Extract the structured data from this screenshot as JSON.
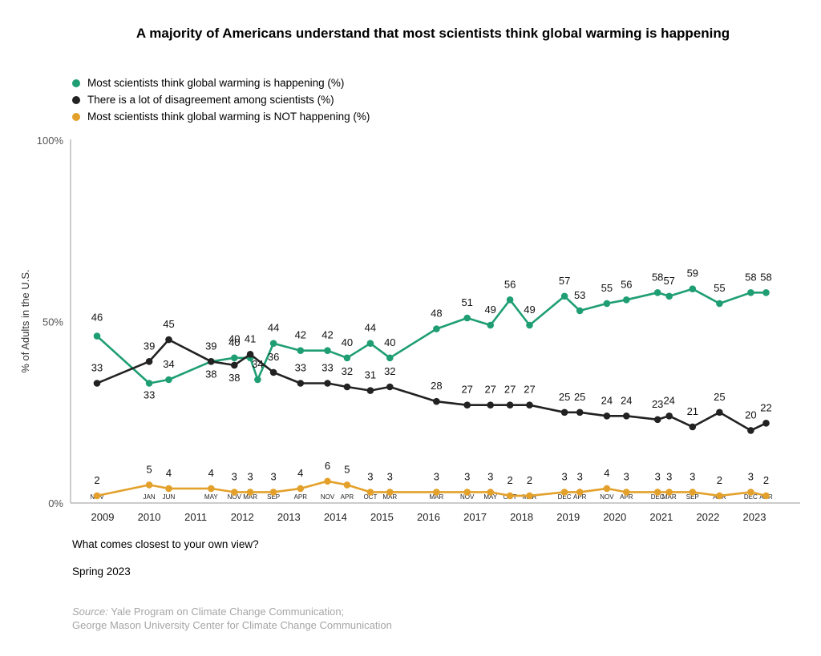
{
  "chart_data": {
    "type": "line",
    "title": "A majority of Americans understand that most scientists think global warming is happening",
    "ylabel": "% of Adults in the U.S.",
    "ylim": [
      0,
      100
    ],
    "yticks": [
      "0%",
      "50%",
      "100%"
    ],
    "xlim": [
      2008.5,
      2023.6
    ],
    "grid": false,
    "legend_position": "top-left",
    "x_years": [
      "2009",
      "2010",
      "2011",
      "2012",
      "2013",
      "2014",
      "2015",
      "2016",
      "2017",
      "2018",
      "2019",
      "2020",
      "2021",
      "2022",
      "2023"
    ],
    "x_months": [
      "NOV",
      "JAN",
      "JUN",
      "MAY",
      "NOV",
      "MAR",
      "SEP",
      "APR",
      "NOV",
      "APR",
      "OCT",
      "MAR",
      "MAR",
      "NOV",
      "MAY",
      "OCT",
      "MAR",
      "DEC",
      "APR",
      "NOV",
      "APR",
      "DEC",
      "MAR",
      "SEP",
      "APR",
      "DEC",
      "APR"
    ],
    "x": [
      2008.88,
      2010.0,
      2010.42,
      2011.33,
      2011.83,
      2012.17,
      2012.67,
      2013.25,
      2013.83,
      2014.25,
      2014.75,
      2015.17,
      2016.17,
      2016.83,
      2017.33,
      2017.75,
      2018.17,
      2018.92,
      2019.25,
      2019.83,
      2020.25,
      2020.92,
      2021.17,
      2021.67,
      2022.25,
      2022.92,
      2023.25
    ],
    "series": [
      {
        "name": "Most scientists think global warming is happening (%)",
        "color": "#1f9e73",
        "x": [
          2008.88,
          2010.0,
          2010.42,
          2011.33,
          2011.83,
          2012.17,
          2012.33,
          2012.67,
          2013.25,
          2013.83,
          2014.25,
          2014.75,
          2015.17,
          2016.17,
          2016.83,
          2017.33,
          2017.75,
          2018.17,
          2018.92,
          2019.25,
          2019.83,
          2020.25,
          2020.92,
          2021.17,
          2021.67,
          2022.25,
          2022.92,
          2023.25
        ],
        "values": [
          46,
          33,
          34,
          39,
          40,
          40,
          34,
          44,
          42,
          42,
          40,
          44,
          40,
          48,
          51,
          49,
          56,
          49,
          57,
          53,
          55,
          56,
          58,
          57,
          59,
          55,
          58,
          58
        ],
        "labels": [
          "46",
          "33",
          "34",
          "",
          "40",
          "",
          "34",
          "44",
          "42",
          "42",
          "40",
          "44",
          "40",
          "48",
          "51",
          "49",
          "56",
          "49",
          "57",
          "53",
          "55",
          "56",
          "58",
          "57",
          "59",
          "55",
          "58",
          "58"
        ]
      },
      {
        "name": "There is a lot of disagreement among scientists (%)",
        "color": "#222222",
        "x": [
          2008.88,
          2010.0,
          2010.42,
          2011.33,
          2011.83,
          2012.17,
          2012.67,
          2013.25,
          2013.83,
          2014.25,
          2014.75,
          2015.17,
          2016.17,
          2016.83,
          2017.33,
          2017.75,
          2018.17,
          2018.92,
          2019.25,
          2019.83,
          2020.25,
          2020.92,
          2021.17,
          2021.67,
          2022.25,
          2022.92,
          2023.25
        ],
        "values": [
          33,
          39,
          45,
          39,
          38,
          41,
          36,
          33,
          33,
          32,
          31,
          32,
          28,
          27,
          27,
          27,
          27,
          25,
          25,
          24,
          24,
          23,
          24,
          21,
          25,
          20,
          22
        ],
        "labels": [
          "33",
          "39",
          "45",
          "39",
          "38",
          "41",
          "36",
          "33",
          "33",
          "32",
          "31",
          "32",
          "28",
          "27",
          "27",
          "27",
          "27",
          "25",
          "25",
          "24",
          "24",
          "23",
          "24",
          "21",
          "25",
          "20",
          "22"
        ],
        "extra_labels": [
          "38"
        ]
      },
      {
        "name": "Most scientists think global warming is NOT happening (%)",
        "color": "#e3a12b",
        "x": [
          2008.88,
          2010.0,
          2010.42,
          2011.33,
          2011.83,
          2012.17,
          2012.67,
          2013.25,
          2013.83,
          2014.25,
          2014.75,
          2015.17,
          2016.17,
          2016.83,
          2017.33,
          2017.75,
          2018.17,
          2018.92,
          2019.25,
          2019.83,
          2020.25,
          2020.92,
          2021.17,
          2021.67,
          2022.25,
          2022.92,
          2023.25
        ],
        "values": [
          2,
          5,
          4,
          4,
          3,
          3,
          3,
          4,
          6,
          5,
          3,
          3,
          3,
          3,
          3,
          2,
          2,
          3,
          3,
          4,
          3,
          3,
          3,
          3,
          2,
          3,
          2
        ],
        "labels": [
          "2",
          "5",
          "4",
          "4",
          "3",
          "3",
          "3",
          "4",
          "6",
          "5",
          "3",
          "3",
          "3",
          "3",
          "3",
          "2",
          "2",
          "3",
          "3",
          "4",
          "3",
          "3",
          "3",
          "3",
          "2",
          "3",
          "2"
        ]
      }
    ]
  },
  "question": "What comes closest to your own view?",
  "period": "Spring 2023",
  "source_label": "Source:",
  "source_line1": "Yale Program on Climate Change Communication;",
  "source_line2": "George Mason University Center for Climate Change Communication"
}
